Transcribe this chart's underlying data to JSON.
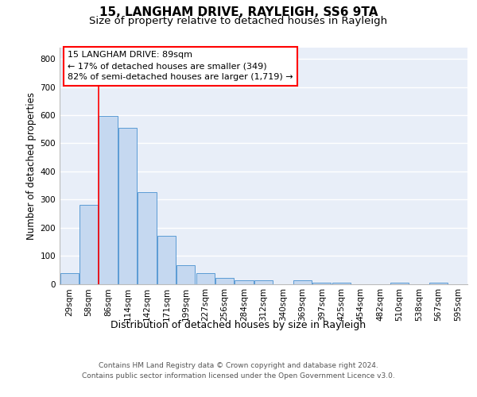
{
  "title1": "15, LANGHAM DRIVE, RAYLEIGH, SS6 9TA",
  "title2": "Size of property relative to detached houses in Rayleigh",
  "xlabel": "Distribution of detached houses by size in Rayleigh",
  "ylabel": "Number of detached properties",
  "bar_labels": [
    "29sqm",
    "58sqm",
    "86sqm",
    "114sqm",
    "142sqm",
    "171sqm",
    "199sqm",
    "227sqm",
    "256sqm",
    "284sqm",
    "312sqm",
    "340sqm",
    "369sqm",
    "397sqm",
    "425sqm",
    "454sqm",
    "482sqm",
    "510sqm",
    "538sqm",
    "567sqm",
    "595sqm"
  ],
  "bar_values": [
    38,
    280,
    598,
    555,
    325,
    170,
    65,
    38,
    22,
    12,
    12,
    0,
    12,
    5,
    5,
    0,
    0,
    5,
    0,
    5,
    0
  ],
  "bar_color": "#c5d8f0",
  "bar_edge_color": "#5b9bd5",
  "background_color": "#e8eef8",
  "annotation_line1": "15 LANGHAM DRIVE: 89sqm",
  "annotation_line2": "← 17% of detached houses are smaller (349)",
  "annotation_line3": "82% of semi-detached houses are larger (1,719) →",
  "annotation_box_color": "white",
  "annotation_border_color": "red",
  "vline_color": "red",
  "vline_position": 2.5,
  "ylim": [
    0,
    840
  ],
  "yticks": [
    0,
    100,
    200,
    300,
    400,
    500,
    600,
    700,
    800
  ],
  "footer": "Contains HM Land Registry data © Crown copyright and database right 2024.\nContains public sector information licensed under the Open Government Licence v3.0.",
  "title1_fontsize": 11,
  "title2_fontsize": 9.5,
  "xlabel_fontsize": 9,
  "ylabel_fontsize": 8.5,
  "tick_fontsize": 7.5,
  "annotation_fontsize": 8,
  "footer_fontsize": 6.5
}
